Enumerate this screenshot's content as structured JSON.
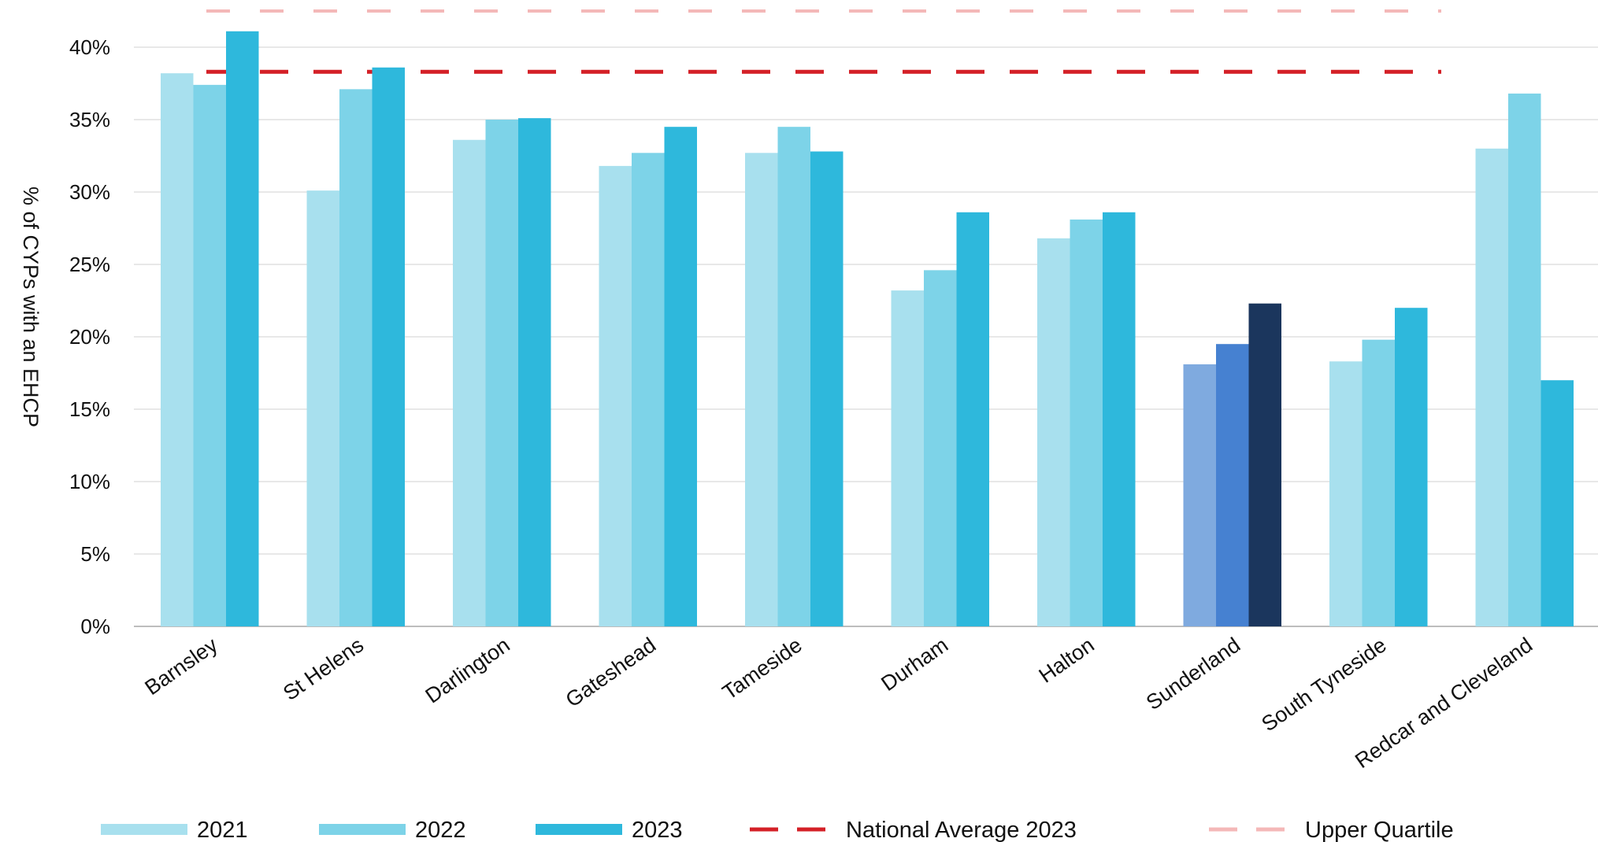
{
  "chart_data": {
    "type": "bar",
    "title": "",
    "xlabel": "",
    "ylabel": "% of CYPs with an EHCP",
    "ylim": [
      0,
      42
    ],
    "yticks": [
      0,
      5,
      10,
      15,
      20,
      25,
      30,
      35,
      40
    ],
    "ytick_labels": [
      "0%",
      "5%",
      "10%",
      "15%",
      "20%",
      "25%",
      "30%",
      "35%",
      "40%"
    ],
    "grid": true,
    "legend_position": "bottom",
    "categories": [
      "Barnsley",
      "St Helens",
      "Darlington",
      "Gateshead",
      "Tameside",
      "Durham",
      "Halton",
      "Sunderland",
      "South Tyneside",
      "Redcar and Cleveland"
    ],
    "series": [
      {
        "name": "2021",
        "color": "#a8e0ee",
        "values": [
          38.2,
          30.1,
          33.6,
          31.8,
          32.7,
          23.2,
          26.8,
          18.1,
          18.3,
          33.0
        ]
      },
      {
        "name": "2022",
        "color": "#7dd3e8",
        "values": [
          37.4,
          37.1,
          35.0,
          32.7,
          34.5,
          24.6,
          28.1,
          19.5,
          19.8,
          36.8
        ]
      },
      {
        "name": "2023",
        "color": "#2eb8dc",
        "values": [
          41.1,
          38.6,
          35.1,
          34.5,
          32.8,
          28.6,
          28.6,
          22.3,
          22.0,
          17.0
        ]
      }
    ],
    "highlight": {
      "category": "Sunderland",
      "colors": [
        "#7faadf",
        "#4681d1",
        "#1b365d"
      ]
    },
    "reference_lines": [
      {
        "name": "National Average 2023",
        "value": 38.3,
        "color": "#d42027",
        "style": "dashed"
      },
      {
        "name": "Upper Quartile",
        "value": 42.5,
        "color": "#f4b8b8",
        "style": "dashed"
      }
    ]
  }
}
